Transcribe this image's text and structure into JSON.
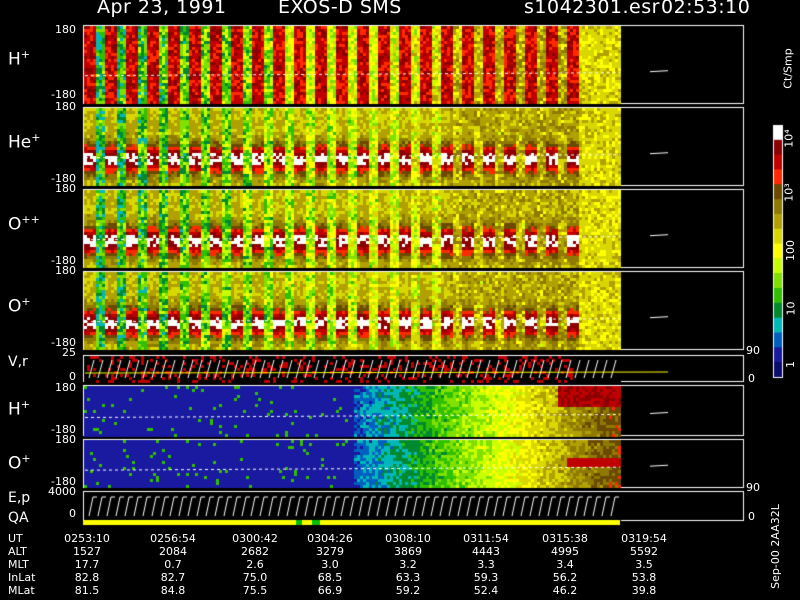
{
  "header": {
    "date": "Apr 23, 1991",
    "instrument": "EXOS-D SMS",
    "file": "s1042301.esr",
    "time": "02:53:10"
  },
  "panels": [
    {
      "label": "H",
      "sup": "+",
      "ymax": "180",
      "ymin": "-180"
    },
    {
      "label": "He",
      "sup": "+",
      "ymax": "180",
      "ymin": "-180"
    },
    {
      "label": "O",
      "sup": "++",
      "ymax": "180",
      "ymin": "-180"
    },
    {
      "label": "O",
      "sup": "+",
      "ymax": "180",
      "ymin": "-180"
    },
    {
      "label": "V,r",
      "sup": "",
      "ymax": "25",
      "ymin": "0",
      "rmax": "90",
      "rmin": "0"
    },
    {
      "label": "H",
      "sup": "+",
      "ymax": "180",
      "ymin": "-180"
    },
    {
      "label": "O",
      "sup": "+",
      "ymax": "180",
      "ymin": "-180"
    },
    {
      "label": "E,p",
      "sup": "",
      "ymax": "4000",
      "ymin": "0",
      "rmax": "90",
      "rmin": "0"
    }
  ],
  "qa_label": "QA",
  "colorbar": {
    "unit": "Ct/Smp",
    "labels": [
      "10⁴",
      "10³",
      "100",
      "10",
      "1"
    ],
    "colors": [
      "#ffffff",
      "#8b0000",
      "#c00000",
      "#ff2a00",
      "#6b4a00",
      "#8e7a00",
      "#b0a000",
      "#d8d800",
      "#ffff00",
      "#c8ff00",
      "#80e000",
      "#30c000",
      "#008a30",
      "#00b8b8",
      "#0060c0",
      "#1a1aa0",
      "#0c0c70"
    ]
  },
  "time_table": {
    "rows": [
      {
        "name": "UT",
        "values": [
          "0253:10",
          "0256:54",
          "0300:42",
          "0304:26",
          "0308:10",
          "0311:54",
          "0315:38",
          "0319:54"
        ]
      },
      {
        "name": "ALT",
        "values": [
          "1527",
          "2084",
          "2682",
          "3279",
          "3869",
          "4443",
          "4995",
          "5592"
        ]
      },
      {
        "name": "MLT",
        "values": [
          "17.7",
          "0.7",
          "2.6",
          "3.0",
          "3.2",
          "3.3",
          "3.4",
          "3.5"
        ]
      },
      {
        "name": "InLat",
        "values": [
          "82.8",
          "82.7",
          "75.0",
          "68.5",
          "63.3",
          "59.3",
          "56.2",
          "53.8"
        ]
      },
      {
        "name": "MLat",
        "values": [
          "81.5",
          "84.8",
          "75.5",
          "66.9",
          "59.2",
          "52.4",
          "46.2",
          "39.8"
        ]
      }
    ]
  },
  "stamp": "Sep-00 2AA32L",
  "chart_data": {
    "type": "heatmap",
    "title": "Apr 23, 1991  EXOS-D SMS",
    "x_ticks": [
      "0253:10",
      "0256:54",
      "0300:42",
      "0304:26",
      "0308:10",
      "0311:54",
      "0315:38",
      "0319:54"
    ],
    "series": [
      {
        "name": "H+",
        "ylim": [
          -180,
          180
        ]
      },
      {
        "name": "He+",
        "ylim": [
          -180,
          180
        ]
      },
      {
        "name": "O++",
        "ylim": [
          -180,
          180
        ]
      },
      {
        "name": "O+",
        "ylim": [
          -180,
          180
        ]
      },
      {
        "name": "V,r",
        "ylim": [
          0,
          25
        ]
      },
      {
        "name": "H+",
        "ylim": [
          -180,
          180
        ]
      },
      {
        "name": "O+",
        "ylim": [
          -180,
          180
        ]
      },
      {
        "name": "E,p",
        "ylim": [
          0,
          4000
        ]
      }
    ],
    "color_scale": {
      "unit": "Ct/Smp",
      "log": true,
      "range": [
        1,
        10000
      ]
    }
  }
}
